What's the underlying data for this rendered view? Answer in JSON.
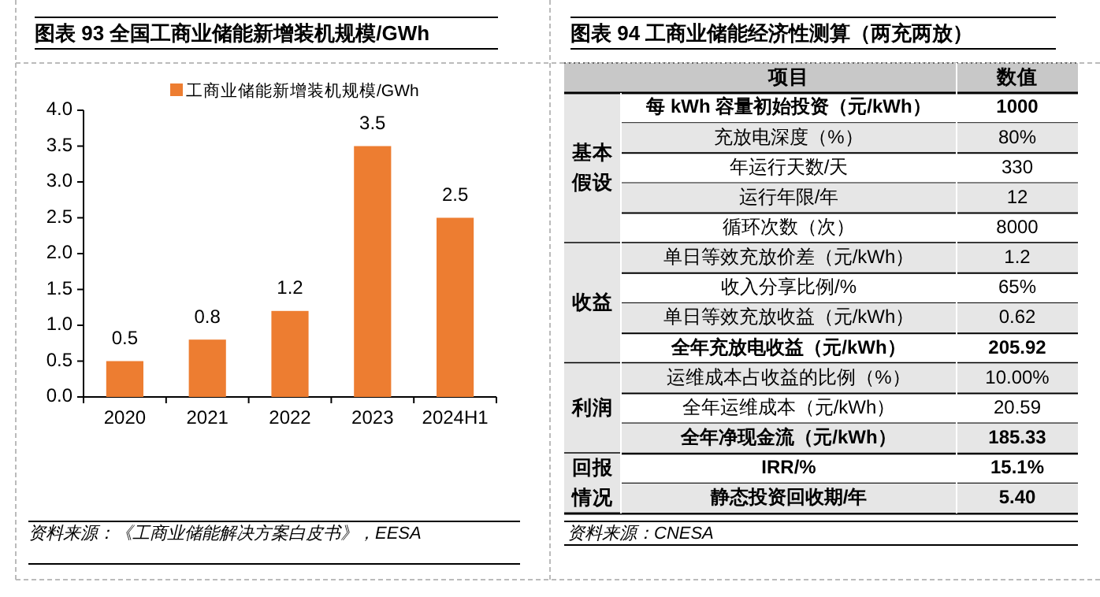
{
  "chart_data": [
    {
      "type": "bar",
      "title": "图表 93  全国工商业储能新增装机规模/GWh",
      "categories": [
        "2020",
        "2021",
        "2022",
        "2023",
        "2024H1"
      ],
      "series": [
        {
          "name": "工商业储能新增装机规模/GWh",
          "color": "#ed7d31",
          "values": [
            0.5,
            0.8,
            1.2,
            3.5,
            2.5
          ]
        }
      ],
      "ylim": [
        0,
        4
      ],
      "yticks": [
        {
          "value": 0,
          "label": "0.0"
        },
        {
          "value": 0.5,
          "label": "0.5"
        },
        {
          "value": 1,
          "label": "1.0"
        },
        {
          "value": 1.5,
          "label": "1.5"
        },
        {
          "value": 2,
          "label": "2.0"
        },
        {
          "value": 2.5,
          "label": "2.5"
        },
        {
          "value": 3,
          "label": "3.0"
        },
        {
          "value": 3.5,
          "label": "3.5"
        },
        {
          "value": 4,
          "label": "4.0"
        }
      ],
      "data_labels": true,
      "legend": "top",
      "grid": false,
      "annotations": [
        "资料来源：《工商业储能解决方案白皮书》，EESA"
      ]
    },
    {
      "type": "other",
      "title": "图表 94  工商业储能经济性测算（两充两放）",
      "categories": [
        "每 kWh 容量初始投资（元/kWh）",
        "充放电深度（%）",
        "年运行天数/天",
        "运行年限/年",
        "循环次数（次）",
        "单日等效充放价差（元/kWh）",
        "收入分享比例/%",
        "单日等效充放收益（元/kWh）",
        "全年充放电收益（元/kWh）",
        "运维成本占收益的比例（%）",
        "全年运维成本（元/kWh）",
        "全年净现金流（元/kWh）",
        "IRR/%",
        "静态投资回收期/年"
      ],
      "value_labels": [
        "1000",
        "80%",
        "330",
        "12",
        "8000",
        "1.2",
        "65%",
        "0.62",
        "205.92",
        "10.00%",
        "20.59",
        "185.33",
        "15.1%",
        "5.40"
      ],
      "annotations": [
        "项目",
        "数值",
        "基本假设",
        "收益",
        "利润",
        "回报情况",
        "资料来源：CNESA"
      ]
    }
  ]
}
